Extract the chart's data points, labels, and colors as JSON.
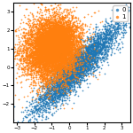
{
  "title": "",
  "xlim": [
    -3.2,
    3.5
  ],
  "ylim": [
    -3.0,
    3.5
  ],
  "class0_color": "#1f77b4",
  "class1_color": "#ff7f0e",
  "class0_label": "0",
  "class1_label": "1",
  "n_class0": 4000,
  "n_class1": 3000,
  "figsize": [
    1.5,
    1.5
  ],
  "dpi": 100,
  "marker_size": 1.5,
  "alpha": 0.8,
  "legend_fontsize": 5,
  "tick_labelsize": 4,
  "seed": 0
}
